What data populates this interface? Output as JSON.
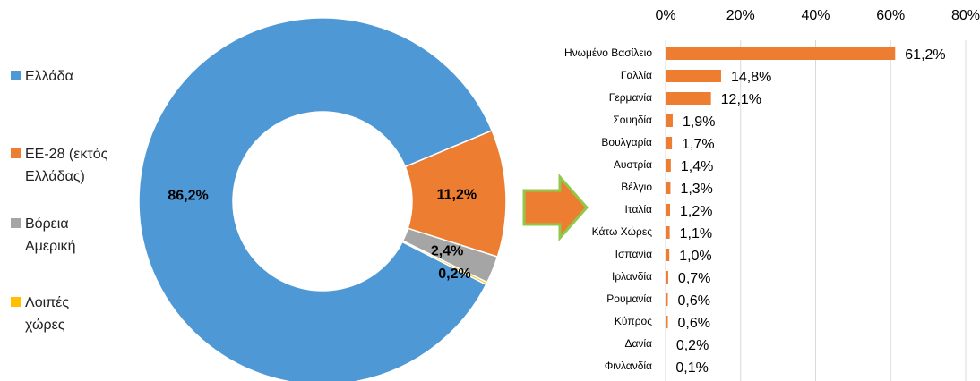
{
  "chart_data": [
    {
      "type": "donut",
      "categories": [
        "Ελλάδα",
        "ΕΕ-28 (εκτός Ελλάδας)",
        "Βόρεια Αμερική",
        "Λοιπές χώρες"
      ],
      "values": [
        86.2,
        11.2,
        2.4,
        0.2
      ],
      "value_labels": [
        "86,2%",
        "11,2%",
        "2,4%",
        "0,2%"
      ],
      "colors": [
        "#4e98d5",
        "#ed7d31",
        "#a5a5a5",
        "#ffc000"
      ]
    },
    {
      "type": "hbar",
      "categories": [
        "Ηνωμένο Βασίλειο",
        "Γαλλία",
        "Γερμανία",
        "Σουηδία",
        "Βουλγαρία",
        "Αυστρία",
        "Βέλγιο",
        "Ιταλία",
        "Κάτω Χώρες",
        "Ισπανία",
        "Ιρλανδία",
        "Ρουμανία",
        "Κύπρος",
        "Δανία",
        "Φινλανδία"
      ],
      "values": [
        61.2,
        14.8,
        12.1,
        1.9,
        1.7,
        1.4,
        1.3,
        1.2,
        1.1,
        1.0,
        0.7,
        0.6,
        0.6,
        0.2,
        0.1
      ],
      "value_labels": [
        "61,2%",
        "14,8%",
        "12,1%",
        "1,9%",
        "1,7%",
        "1,4%",
        "1,3%",
        "1,2%",
        "1,1%",
        "1,0%",
        "0,7%",
        "0,6%",
        "0,6%",
        "0,2%",
        "0,1%"
      ],
      "color": "#ed7d31",
      "xlim": [
        0,
        80
      ],
      "xticks": [
        {
          "value": 0,
          "label": "0%"
        },
        {
          "value": 20,
          "label": "20%"
        },
        {
          "value": 40,
          "label": "40%"
        },
        {
          "value": 60,
          "label": "60%"
        },
        {
          "value": 80,
          "label": "80%"
        }
      ],
      "grid": true
    }
  ]
}
